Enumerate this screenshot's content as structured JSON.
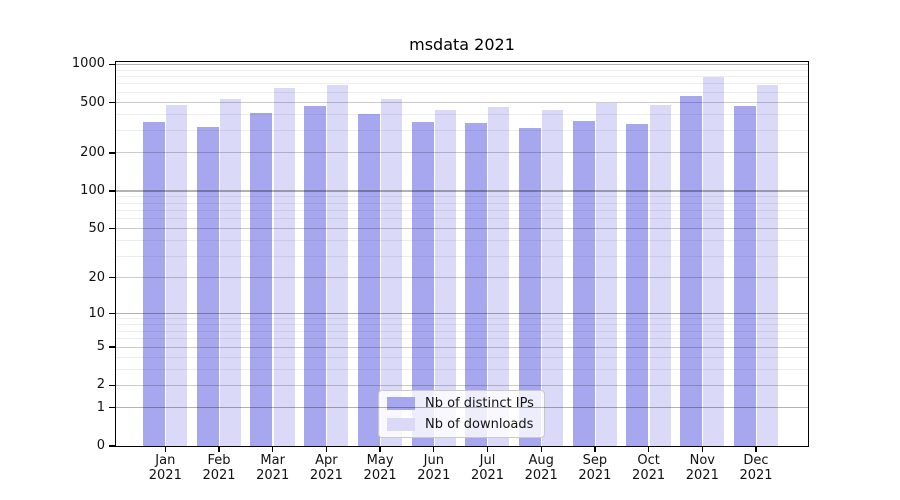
{
  "chart_data": {
    "type": "bar",
    "title": "msdata 2021",
    "categories": [
      "Jan",
      "Feb",
      "Mar",
      "Apr",
      "May",
      "Jun",
      "Jul",
      "Aug",
      "Sep",
      "Oct",
      "Nov",
      "Dec"
    ],
    "category_year": "2021",
    "series": [
      {
        "name": "Nb of distinct IPs",
        "color": "#a7a7f0",
        "values": [
          353,
          319,
          416,
          470,
          408,
          353,
          342,
          317,
          360,
          337,
          568,
          472
        ]
      },
      {
        "name": "Nb of downloads",
        "color": "#dadaf8",
        "values": [
          478,
          536,
          648,
          692,
          537,
          435,
          457,
          440,
          493,
          476,
          788,
          689
        ]
      }
    ],
    "yscale": "symlog (log1p)",
    "y_ticks": [
      0,
      1,
      2,
      5,
      10,
      20,
      50,
      100,
      200,
      500,
      1000
    ],
    "ylim": [
      0,
      1052
    ],
    "xlabel": "",
    "ylabel": "",
    "grid": {
      "orientation": "horizontal",
      "power_line_values": [
        1,
        10,
        100,
        1000
      ],
      "labeled_line_values": [
        2,
        5,
        20,
        50,
        200,
        500
      ],
      "minor_lines": "2-9 per decade",
      "power_color": "rgba(0,0,0,0.30)",
      "labeled_color": "rgba(0,0,0,0.20)",
      "minor_color": "rgba(0,0,0,0.07)"
    },
    "legend": {
      "position": "lower center",
      "entries": [
        "Nb of distinct IPs",
        "Nb of downloads"
      ]
    }
  },
  "colors": {
    "background": "#ffffff",
    "axis": "#000000",
    "text": "#111111"
  }
}
